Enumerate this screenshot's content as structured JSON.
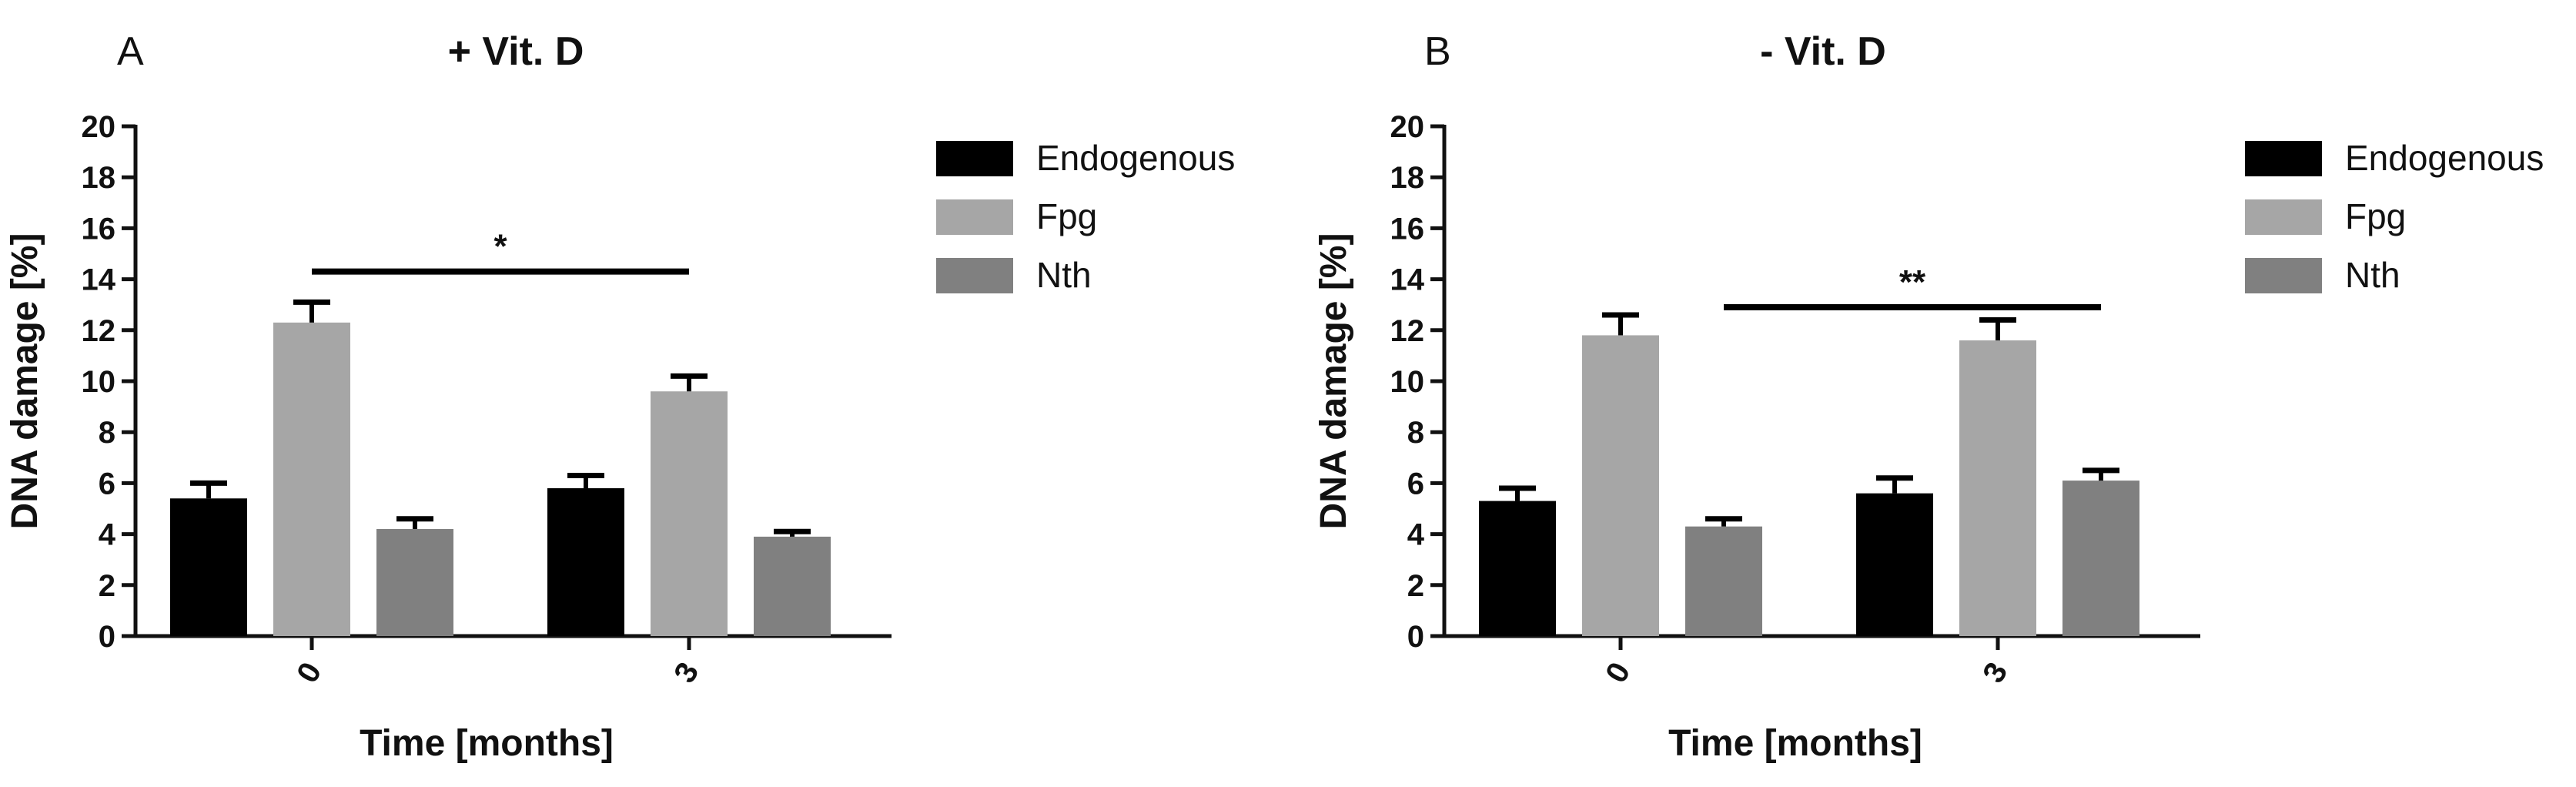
{
  "chart_data": [
    {
      "type": "bar",
      "panel_label": "A",
      "title": "+ Vit. D",
      "xlabel": "Time [months]",
      "ylabel": "DNA damage [%]",
      "ylim": [
        0,
        20
      ],
      "yticks": [
        0,
        2,
        4,
        6,
        8,
        10,
        12,
        14,
        16,
        18,
        20
      ],
      "categories": [
        "0",
        "3"
      ],
      "series": [
        {
          "name": "Endogenous",
          "color": "#000000",
          "values": [
            5.4,
            5.8
          ],
          "errors": [
            0.6,
            0.5
          ]
        },
        {
          "name": "Fpg",
          "color": "#a6a6a6",
          "values": [
            12.3,
            9.6
          ],
          "errors": [
            0.8,
            0.6
          ]
        },
        {
          "name": "Nth",
          "color": "#808080",
          "values": [
            4.2,
            3.9
          ],
          "errors": [
            0.4,
            0.2
          ]
        }
      ],
      "significance": [
        {
          "label": "*",
          "from": {
            "category": 0,
            "series": 1
          },
          "to": {
            "category": 1,
            "series": 1
          },
          "level": 14.3
        }
      ],
      "legend_position": "right"
    },
    {
      "type": "bar",
      "panel_label": "B",
      "title": "- Vit. D",
      "xlabel": "Time [months]",
      "ylabel": "DNA damage [%]",
      "ylim": [
        0,
        20
      ],
      "yticks": [
        0,
        2,
        4,
        6,
        8,
        10,
        12,
        14,
        16,
        18,
        20
      ],
      "categories": [
        "0",
        "3"
      ],
      "series": [
        {
          "name": "Endogenous",
          "color": "#000000",
          "values": [
            5.3,
            5.6
          ],
          "errors": [
            0.5,
            0.6
          ]
        },
        {
          "name": "Fpg",
          "color": "#a6a6a6",
          "values": [
            11.8,
            11.6
          ],
          "errors": [
            0.8,
            0.8
          ]
        },
        {
          "name": "Nth",
          "color": "#808080",
          "values": [
            4.3,
            6.1
          ],
          "errors": [
            0.3,
            0.4
          ]
        }
      ],
      "significance": [
        {
          "label": "**",
          "from": {
            "category": 0,
            "series": 2
          },
          "to": {
            "category": 1,
            "series": 2
          },
          "level": 12.9
        }
      ],
      "legend_position": "right"
    }
  ]
}
